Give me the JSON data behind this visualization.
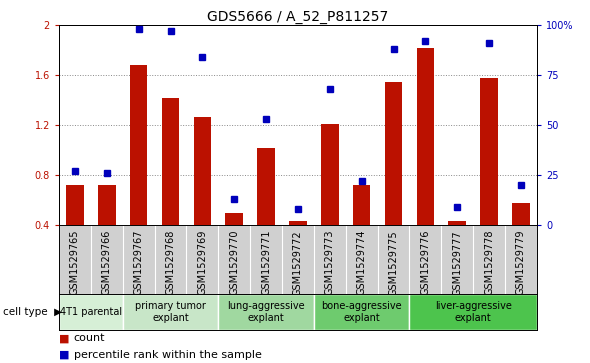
{
  "title": "GDS5666 / A_52_P811257",
  "samples": [
    "GSM1529765",
    "GSM1529766",
    "GSM1529767",
    "GSM1529768",
    "GSM1529769",
    "GSM1529770",
    "GSM1529771",
    "GSM1529772",
    "GSM1529773",
    "GSM1529774",
    "GSM1529775",
    "GSM1529776",
    "GSM1529777",
    "GSM1529778",
    "GSM1529779"
  ],
  "counts": [
    0.72,
    0.72,
    1.68,
    1.42,
    1.27,
    0.5,
    1.02,
    0.43,
    1.21,
    0.72,
    1.55,
    1.82,
    0.43,
    1.58,
    0.58
  ],
  "percentiles": [
    27,
    26,
    98,
    97,
    84,
    13,
    53,
    8,
    68,
    22,
    88,
    92,
    9,
    91,
    20
  ],
  "cell_types": [
    {
      "label": "4T1 parental",
      "start": 0,
      "end": 2,
      "color": "#d6efd6"
    },
    {
      "label": "primary tumor\nexplant",
      "start": 2,
      "end": 5,
      "color": "#c8e6c8"
    },
    {
      "label": "lung-aggressive\nexplant",
      "start": 5,
      "end": 8,
      "color": "#a0d8a0"
    },
    {
      "label": "bone-aggressive\nexplant",
      "start": 8,
      "end": 11,
      "color": "#6ecb6e"
    },
    {
      "label": "liver-aggressive\nexplant",
      "start": 11,
      "end": 15,
      "color": "#4dc44d"
    }
  ],
  "bar_color": "#bb1100",
  "dot_color": "#0000bb",
  "ylim_left": [
    0.4,
    2.0
  ],
  "ylim_right": [
    0,
    100
  ],
  "yticks_left": [
    0.4,
    0.8,
    1.2,
    1.6,
    2.0
  ],
  "yticks_right": [
    0,
    25,
    50,
    75,
    100
  ],
  "yticklabels_right": [
    "0",
    "25",
    "50",
    "75",
    "100%"
  ],
  "legend_count_label": "count",
  "legend_pct_label": "percentile rank within the sample",
  "cell_type_label": "cell type",
  "sample_row_color": "#d0d0d0",
  "plot_bg": "#ffffff",
  "title_fontsize": 10,
  "tick_fontsize": 7.0,
  "legend_fontsize": 8.0
}
